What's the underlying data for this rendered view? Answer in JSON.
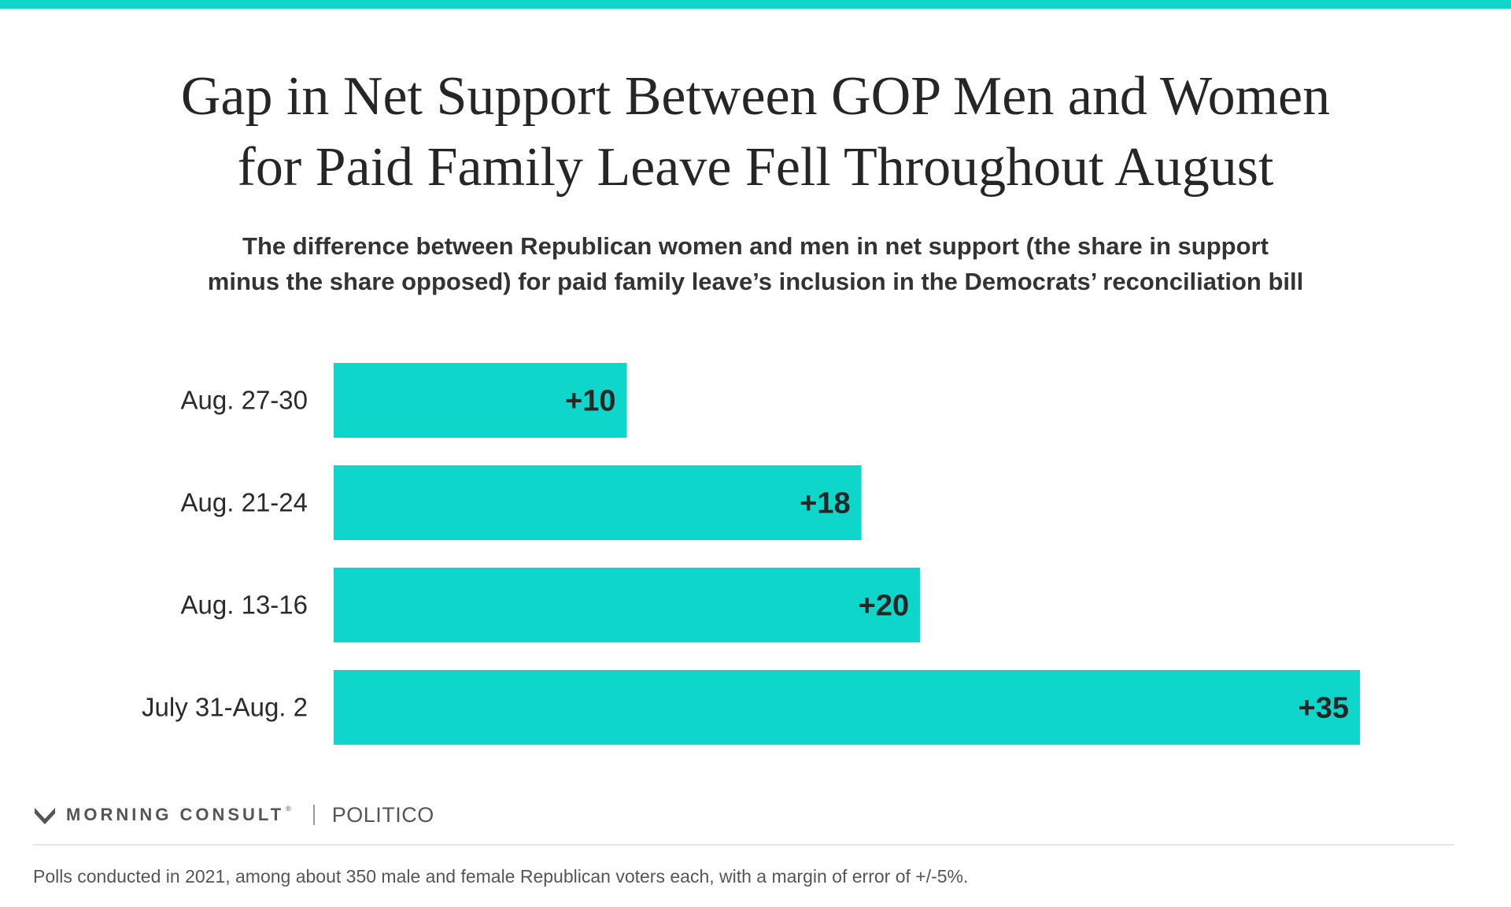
{
  "accent_color": "#0fd6cb",
  "header": {
    "title_line1": "Gap in Net Support Between GOP Men and Women",
    "title_line2": "for Paid Family Leave Fell Throughout August",
    "subtitle_line1": "The difference between Republican women and men in net support (the share in support",
    "subtitle_line2": "minus the share opposed) for paid family leave’s inclusion in the Democrats’ reconciliation bill"
  },
  "chart_data": {
    "type": "bar",
    "orientation": "horizontal",
    "categories": [
      "Aug. 27-30",
      "Aug. 21-24",
      "Aug. 13-16",
      "July 31-Aug. 2"
    ],
    "values": [
      10,
      18,
      20,
      35
    ],
    "data_labels": [
      "+10",
      "+18",
      "+20",
      "+35"
    ],
    "title": "Gap in Net Support Between GOP Men and Women for Paid Family Leave Fell Throughout August",
    "xlabel": "",
    "ylabel": "",
    "xlim": [
      0,
      35
    ],
    "grid": false,
    "legend": "none"
  },
  "branding": {
    "logo_text": "MORNING CONSULT",
    "logo_registered": "®",
    "partner": "POLITICO",
    "logo_icon": "morning-consult-chevron-icon"
  },
  "footnote": "Polls conducted in 2021, among about 350 male and female Republican voters each, with a margin of error of +/-5%."
}
